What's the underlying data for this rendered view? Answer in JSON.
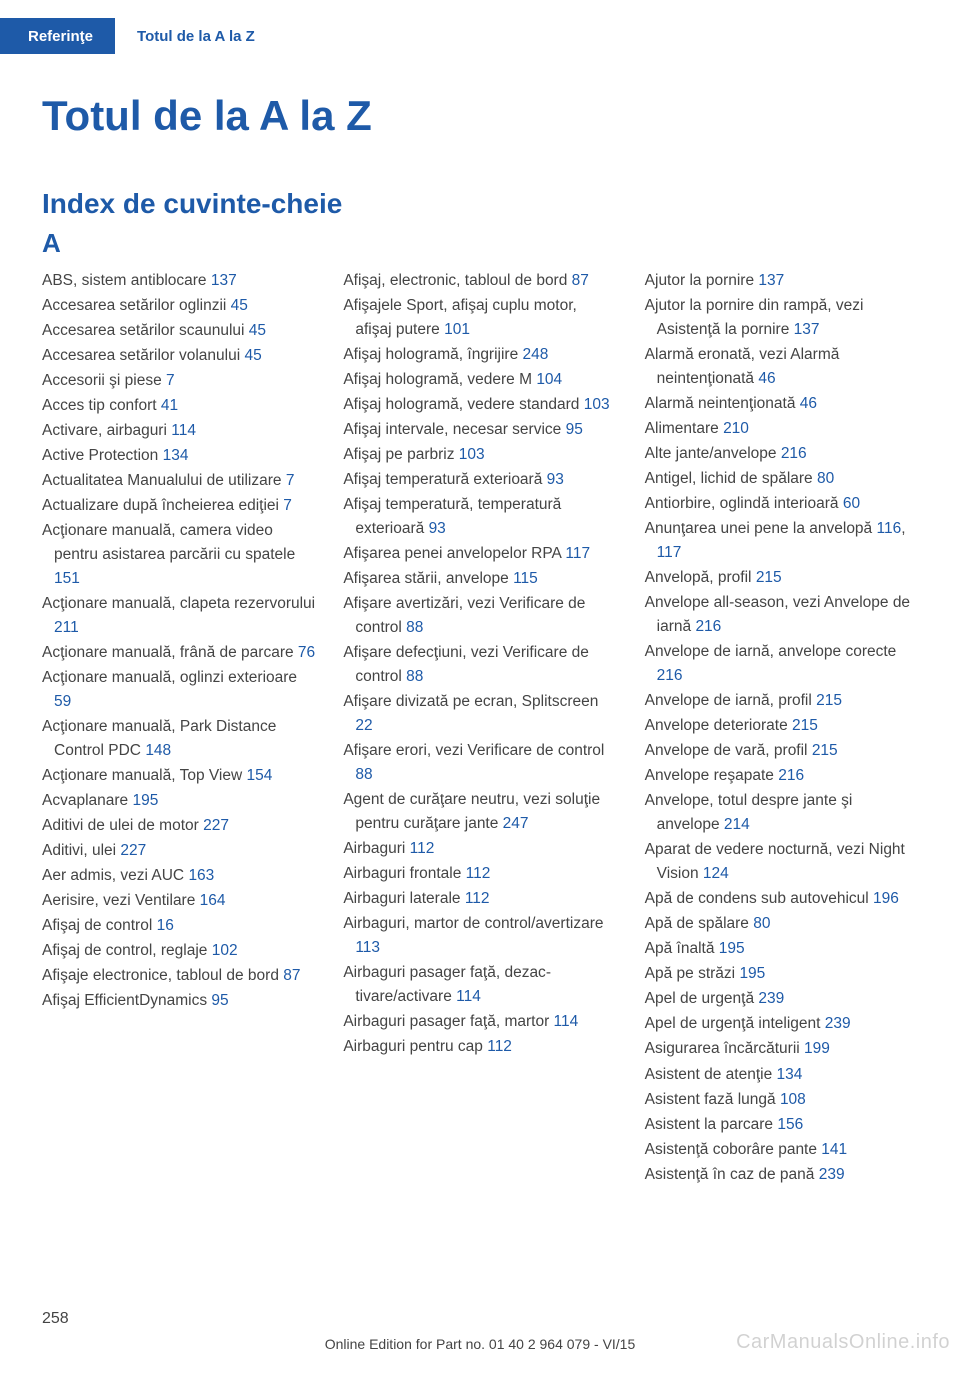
{
  "header": {
    "left_tab": "Referinţe",
    "right_tab": "Totul de la A la Z"
  },
  "page_title": "Totul de la A la Z",
  "section_title": "Index de cuvinte-cheie",
  "letter": "A",
  "columns": [
    [
      {
        "text": "ABS, sistem antiblocare ",
        "ref": "137"
      },
      {
        "text": "Accesarea setărilor oglin­zii ",
        "ref": "45"
      },
      {
        "text": "Accesarea setărilor scaunu­lui ",
        "ref": "45"
      },
      {
        "text": "Accesarea setărilor volanu­lui ",
        "ref": "45"
      },
      {
        "text": "Accesorii şi piese ",
        "ref": "7"
      },
      {
        "text": "Acces tip confort ",
        "ref": "41"
      },
      {
        "text": "Activare, airbaguri ",
        "ref": "114"
      },
      {
        "text": "Active Protection ",
        "ref": "134"
      },
      {
        "text": "Actualitatea Manualului de utilizare ",
        "ref": "7"
      },
      {
        "text": "Actualizare după încheierea ediţiei ",
        "ref": "7"
      },
      {
        "text": "Acţionare manuală, camera video pentru asistarea parcării cu spatele ",
        "ref": "151"
      },
      {
        "text": "Acţionare manuală, clapeta rezervorului ",
        "ref": "211"
      },
      {
        "text": "Acţionare manuală, frână de parcare ",
        "ref": "76"
      },
      {
        "text": "Acţionare manuală, oglinzi ex­terioare ",
        "ref": "59"
      },
      {
        "text": "Acţionare manuală, Park Dis­tance Control PDC ",
        "ref": "148"
      },
      {
        "text": "Acţionare manuală, Top View ",
        "ref": "154"
      },
      {
        "text": "Acvaplanare ",
        "ref": "195"
      },
      {
        "text": "Aditivi de ulei de motor ",
        "ref": "227"
      },
      {
        "text": "Aditivi, ulei ",
        "ref": "227"
      },
      {
        "text": "Aer admis, vezi AUC ",
        "ref": "163"
      },
      {
        "text": "Aerisire, vezi Ventilare ",
        "ref": "164"
      },
      {
        "text": "Afişaj de control ",
        "ref": "16"
      },
      {
        "text": "Afişaj de control, reglaje ",
        "ref": "102"
      },
      {
        "text": "Afişaje electronice, tabloul de bord ",
        "ref": "87"
      },
      {
        "text": "Afişaj EfficientDynamics ",
        "ref": "95"
      }
    ],
    [
      {
        "text": "Afişaj, electronic, tabloul de bord ",
        "ref": "87"
      },
      {
        "text": "Afişajele Sport, afişaj cuplu motor, afişaj putere ",
        "ref": "101"
      },
      {
        "text": "Afişaj hologramă, îngri­jire ",
        "ref": "248"
      },
      {
        "text": "Afişaj hologramă, vedere M ",
        "ref": "104"
      },
      {
        "text": "Afişaj hologramă, vedere standard ",
        "ref": "103"
      },
      {
        "text": "Afişaj intervale, necesar ser­vice ",
        "ref": "95"
      },
      {
        "text": "Afişaj pe parbriz ",
        "ref": "103"
      },
      {
        "text": "Afişaj temperatură exte­rioară ",
        "ref": "93"
      },
      {
        "text": "Afişaj temperatură, tempera­tură exterioară ",
        "ref": "93"
      },
      {
        "text": "Afişarea penei anvelopelor RPA ",
        "ref": "117"
      },
      {
        "text": "Afişarea stării, anvelope ",
        "ref": "115"
      },
      {
        "text": "Afişare avertizări, vezi Verifi­care de control ",
        "ref": "88"
      },
      {
        "text": "Afişare defecţiuni, vezi Verifi­care de control ",
        "ref": "88"
      },
      {
        "text": "Afişare divizată pe ecran, Splitscreen ",
        "ref": "22"
      },
      {
        "text": "Afişare erori, vezi Verificare de control ",
        "ref": "88"
      },
      {
        "text": "Agent de curăţare neutru, vezi soluţie pentru curăţare jante ",
        "ref": "247"
      },
      {
        "text": "Airbaguri ",
        "ref": "112"
      },
      {
        "text": "Airbaguri frontale ",
        "ref": "112"
      },
      {
        "text": "Airbaguri laterale ",
        "ref": "112"
      },
      {
        "text": "Airbaguri, martor de control/avertizare ",
        "ref": "113"
      },
      {
        "text": "Airbaguri pasager faţă, dezac­tivare/activare ",
        "ref": "114"
      },
      {
        "text": "Airbaguri pasager faţă, mar­tor ",
        "ref": "114"
      },
      {
        "text": "Airbaguri pentru cap ",
        "ref": "112"
      }
    ],
    [
      {
        "text": "Ajutor la pornire ",
        "ref": "137"
      },
      {
        "text": "Ajutor la pornire din rampă, vezi Asistenţă la pornire ",
        "ref": "137"
      },
      {
        "text": "Alarmă eronată, vezi Alarmă neintenţionată ",
        "ref": "46"
      },
      {
        "text": "Alarmă neintenţionată ",
        "ref": "46"
      },
      {
        "text": "Alimentare ",
        "ref": "210"
      },
      {
        "text": "Alte jante/anvelope ",
        "ref": "216"
      },
      {
        "text": "Antigel, lichid de spălare ",
        "ref": "80"
      },
      {
        "text": "Antiorbire, oglindă inte­rioară ",
        "ref": "60"
      },
      {
        "text": "Anunţarea unei pene la anve­lopă ",
        "ref": "116",
        "ref2": "117"
      },
      {
        "text": "Anvelopă, profil ",
        "ref": "215"
      },
      {
        "text": "Anvelope all-season, vezi An­velope de iarnă ",
        "ref": "216"
      },
      {
        "text": "Anvelope de iarnă, anvelope corecte ",
        "ref": "216"
      },
      {
        "text": "Anvelope de iarnă, profil ",
        "ref": "215"
      },
      {
        "text": "Anvelope deteriorate ",
        "ref": "215"
      },
      {
        "text": "Anvelope de vară, profil ",
        "ref": "215"
      },
      {
        "text": "Anvelope reşapate ",
        "ref": "216"
      },
      {
        "text": "Anvelope, totul despre jante şi anvelope ",
        "ref": "214"
      },
      {
        "text": "Aparat de vedere nocturnă, vezi Night Vision ",
        "ref": "124"
      },
      {
        "text": "Apă de condens sub autove­hicul ",
        "ref": "196"
      },
      {
        "text": "Apă de spălare ",
        "ref": "80"
      },
      {
        "text": "Apă înaltă ",
        "ref": "195"
      },
      {
        "text": "Apă pe străzi ",
        "ref": "195"
      },
      {
        "text": "Apel de urgenţă ",
        "ref": "239"
      },
      {
        "text": "Apel de urgenţă inteli­gent ",
        "ref": "239"
      },
      {
        "text": "Asigurarea încărcăturii ",
        "ref": "199"
      },
      {
        "text": "Asistent de atenţie ",
        "ref": "134"
      },
      {
        "text": "Asistent fază lungă ",
        "ref": "108"
      },
      {
        "text": "Asistent la parcare ",
        "ref": "156"
      },
      {
        "text": "Asistenţă coborâre pante ",
        "ref": "141"
      },
      {
        "text": "Asistenţă în caz de pană ",
        "ref": "239"
      }
    ]
  ],
  "page_number": "258",
  "footer": "Online Edition for Part no. 01 40 2 964 079 - VI/15",
  "watermark": "CarManualsOnline.info"
}
